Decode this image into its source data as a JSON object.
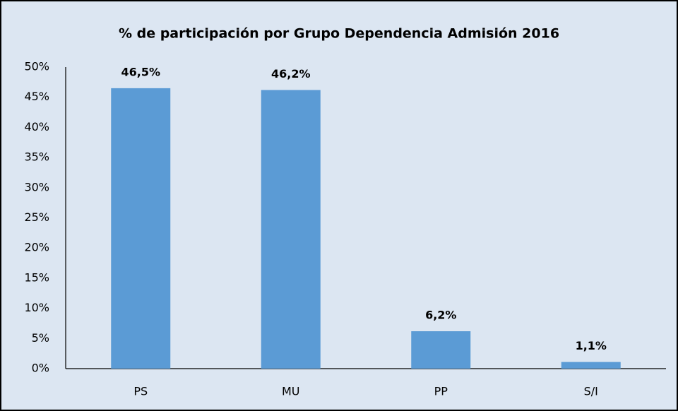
{
  "chart_data": {
    "type": "bar",
    "title": "% de participación  por Grupo Dependencia Admisión 2016",
    "categories": [
      "PS",
      "MU",
      "PP",
      "S/I"
    ],
    "values": [
      46.5,
      46.2,
      6.2,
      1.1
    ],
    "value_labels": [
      "46,5%",
      "46,2%",
      "6,2%",
      "1,1%"
    ],
    "color": "#5b9bd5",
    "ylim": [
      0,
      50
    ],
    "yticks": [
      {
        "value": 0,
        "label": "0%"
      },
      {
        "value": 5,
        "label": "5%"
      },
      {
        "value": 10,
        "label": "10%"
      },
      {
        "value": 15,
        "label": "15%"
      },
      {
        "value": 20,
        "label": "20%"
      },
      {
        "value": 25,
        "label": "25%"
      },
      {
        "value": 30,
        "label": "30%"
      },
      {
        "value": 35,
        "label": "35%"
      },
      {
        "value": 40,
        "label": "40%"
      },
      {
        "value": 45,
        "label": "45%"
      },
      {
        "value": 50,
        "label": "50%"
      }
    ],
    "grid": false
  }
}
